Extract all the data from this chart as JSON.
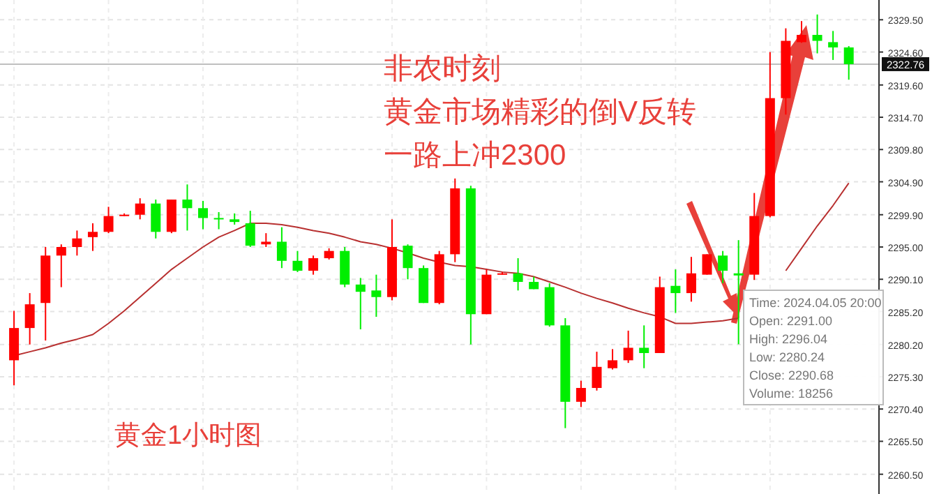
{
  "chart_data": {
    "type": "candlestick",
    "categories": [
      null,
      null,
      null,
      null,
      null,
      null,
      null,
      null,
      null,
      null,
      null,
      null,
      null,
      null,
      null,
      null,
      null,
      null,
      null,
      null,
      null,
      null,
      null,
      null,
      null,
      null,
      null,
      null,
      null,
      null,
      null,
      null,
      null,
      null,
      null,
      null,
      null,
      null,
      null,
      null,
      null,
      null,
      null,
      null,
      null,
      null,
      null,
      null,
      null,
      null,
      null,
      null,
      null,
      null
    ],
    "ohlc": [
      [
        2277.8,
        2285.3,
        2274.0,
        2282.7
      ],
      [
        2282.7,
        2288.0,
        2280.2,
        2286.3
      ],
      [
        2286.5,
        2295.0,
        2280.8,
        2293.7
      ],
      [
        2293.7,
        2295.4,
        2288.9,
        2295.0
      ],
      [
        2295.0,
        2297.5,
        2293.7,
        2296.3
      ],
      [
        2296.5,
        2298.6,
        2294.4,
        2297.3
      ],
      [
        2297.3,
        2301.1,
        2297.1,
        2299.7
      ],
      [
        2299.7,
        2300.1,
        2299.7,
        2299.9
      ],
      [
        2299.9,
        2302.4,
        2299.2,
        2301.6
      ],
      [
        2301.6,
        2302.2,
        2296.3,
        2297.3
      ],
      [
        2297.3,
        2302.2,
        2297.1,
        2302.2
      ],
      [
        2302.2,
        2304.5,
        2297.5,
        2300.9
      ],
      [
        2300.9,
        2302.0,
        2297.7,
        2299.4
      ],
      [
        2299.4,
        2300.3,
        2297.7,
        2299.2
      ],
      [
        2299.2,
        2300.1,
        2298.4,
        2298.8
      ],
      [
        2298.6,
        2300.5,
        2295.0,
        2295.2
      ],
      [
        2295.4,
        2297.1,
        2295.0,
        2295.8
      ],
      [
        2295.8,
        2298.0,
        2291.8,
        2292.9
      ],
      [
        2292.9,
        2294.4,
        2291.2,
        2291.4
      ],
      [
        2291.4,
        2293.7,
        2290.8,
        2293.3
      ],
      [
        2293.3,
        2294.8,
        2293.1,
        2294.4
      ],
      [
        2294.4,
        2295.0,
        2288.9,
        2289.3
      ],
      [
        2289.3,
        2290.3,
        2282.5,
        2288.2
      ],
      [
        2288.4,
        2290.8,
        2284.4,
        2287.4
      ],
      [
        2287.4,
        2299.2,
        2286.9,
        2295.0
      ],
      [
        2295.2,
        2295.4,
        2290.1,
        2291.8
      ],
      [
        2291.8,
        2292.2,
        2286.5,
        2286.5
      ],
      [
        2286.5,
        2294.4,
        2286.3,
        2293.9
      ],
      [
        2293.9,
        2305.4,
        2292.7,
        2303.9
      ],
      [
        2303.9,
        2304.3,
        2280.2,
        2284.8
      ],
      [
        2284.8,
        2291.6,
        2284.8,
        2290.8
      ],
      [
        2290.8,
        2291.2,
        2290.8,
        2291.0
      ],
      [
        2291.0,
        2293.3,
        2288.4,
        2289.7
      ],
      [
        2289.7,
        2290.5,
        2288.6,
        2288.6
      ],
      [
        2288.9,
        2289.5,
        2282.9,
        2283.1
      ],
      [
        2283.1,
        2284.2,
        2267.5,
        2271.5
      ],
      [
        2271.5,
        2274.7,
        2270.7,
        2273.6
      ],
      [
        2273.6,
        2279.1,
        2273.2,
        2276.8
      ],
      [
        2276.6,
        2279.5,
        2276.4,
        2277.8
      ],
      [
        2277.8,
        2282.3,
        2277.4,
        2279.7
      ],
      [
        2279.7,
        2283.1,
        2276.6,
        2278.9
      ],
      [
        2278.9,
        2290.5,
        2278.9,
        2288.9
      ],
      [
        2289.1,
        2291.6,
        2285.0,
        2288.0
      ],
      [
        2288.0,
        2293.5,
        2286.7,
        2291.0
      ],
      [
        2290.8,
        2293.9,
        2290.8,
        2293.9
      ],
      [
        2293.7,
        2294.4,
        2289.5,
        2291.4
      ],
      [
        2291.0,
        2296.04,
        2280.24,
        2290.68
      ],
      [
        2290.8,
        2303.2,
        2290.0,
        2299.7
      ],
      [
        2299.7,
        2324.6,
        2299.5,
        2317.6
      ],
      [
        2317.6,
        2328.2,
        2315.1,
        2326.3
      ],
      [
        2326.1,
        2329.3,
        2326.0,
        2327.2
      ],
      [
        2327.2,
        2330.3,
        2324.4,
        2326.3
      ],
      [
        2326.1,
        2327.8,
        2323.4,
        2325.3
      ],
      [
        2325.3,
        2325.5,
        2320.4,
        2322.76
      ]
    ],
    "colors": [
      "#ff0000",
      "#ff0000",
      "#ff0000",
      "#ff0000",
      "#ff0000",
      "#ff0000",
      "#ff0000",
      "#ff0000",
      "#ff0000",
      "#00ee00",
      "#ff0000",
      "#00ee00",
      "#00ee00",
      "#00ee00",
      "#00ee00",
      "#00ee00",
      "#ff0000",
      "#00ee00",
      "#00ee00",
      "#ff0000",
      "#ff0000",
      "#00ee00",
      "#00ee00",
      "#00ee00",
      "#ff0000",
      "#00ee00",
      "#00ee00",
      "#ff0000",
      "#ff0000",
      "#00ee00",
      "#ff0000",
      "#ff0000",
      "#00ee00",
      "#00ee00",
      "#00ee00",
      "#00ee00",
      "#ff0000",
      "#ff0000",
      "#ff0000",
      "#ff0000",
      "#00ee00",
      "#ff0000",
      "#00ee00",
      "#ff0000",
      "#ff0000",
      "#00ee00",
      "#00ee00",
      "#ff0000",
      "#ff0000",
      "#ff0000",
      "#ff0000",
      "#00ee00",
      "#00ee00",
      "#00ee00"
    ],
    "series": [
      {
        "type": "line",
        "color": "#b83030",
        "values": [
          2278.5,
          2279.1,
          2279.7,
          2280.4,
          2281.0,
          2281.7,
          2283.4,
          2285.3,
          2287.4,
          2289.5,
          2291.6,
          2293.3,
          2295.0,
          2296.5,
          2297.5,
          2298.6,
          2298.6,
          2298.4,
          2298.0,
          2297.5,
          2297.1,
          2296.5,
          2295.8,
          2295.4,
          2294.8,
          2294.1,
          2293.3,
          2292.7,
          2292.2,
          2292.0,
          2291.6,
          2291.2,
          2291.0,
          2290.5,
          2289.7,
          2288.9,
          2288.0,
          2287.2,
          2286.5,
          2285.7,
          2285.0,
          2284.4,
          2283.4,
          2283.4,
          2283.6,
          2283.8,
          2284.2,
          null,
          null,
          2291.4,
          2294.8,
          2298.2,
          2301.3,
          2304.7
        ]
      }
    ],
    "ylim": [
      2257.5,
      2332.5
    ],
    "yticks": [
      {
        "value": 2260.5,
        "label": "2260.50"
      },
      {
        "value": 2265.5,
        "label": "2265.50"
      },
      {
        "value": 2270.4,
        "label": "2270.40"
      },
      {
        "value": 2275.3,
        "label": "2275.30"
      },
      {
        "value": 2280.2,
        "label": "2280.20"
      },
      {
        "value": 2285.2,
        "label": "2285.20"
      },
      {
        "value": 2290.1,
        "label": "2290.10"
      },
      {
        "value": 2295.0,
        "label": "2295.00"
      },
      {
        "value": 2299.9,
        "label": "2299.90"
      },
      {
        "value": 2304.9,
        "label": "2304.90"
      },
      {
        "value": 2309.8,
        "label": "2309.80"
      },
      {
        "value": 2314.7,
        "label": "2314.70"
      },
      {
        "value": 2319.6,
        "label": "2319.60"
      },
      {
        "value": 2324.6,
        "label": "2324.60"
      },
      {
        "value": 2329.5,
        "label": "2329.50"
      }
    ],
    "grid": true,
    "tick_labels": "y",
    "ref_lines": [
      {
        "axis": "y",
        "value": 2322.76,
        "label": "2322.76",
        "color": "#aaaaaa"
      }
    ],
    "annotations": [
      "非农时刻",
      "黄金市场精彩的倒V反转",
      "一路上冲2300",
      "黄金1小时图",
      "Time: 2024.04.05 20:00",
      "Open: 2291.00",
      "High: 2296.04",
      "Low:  2280.24",
      "Close: 2290.68",
      "Volume: 18256"
    ]
  }
}
